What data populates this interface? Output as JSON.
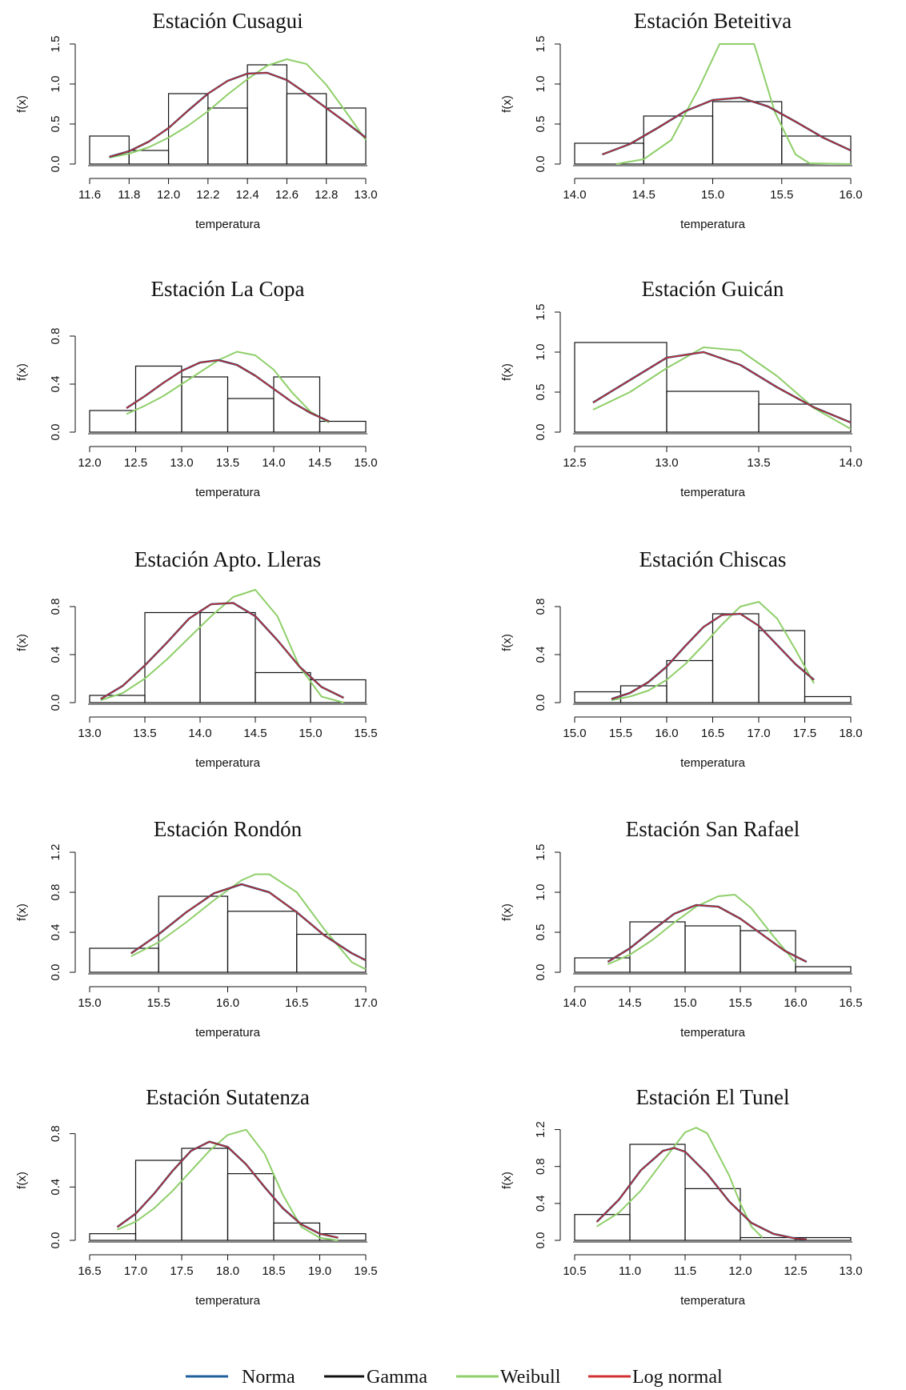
{
  "legend": [
    {
      "name": "Norma",
      "color": "#1f5f9e"
    },
    {
      "name": "Gamma",
      "color": "#111111"
    },
    {
      "name": "Weibull",
      "color": "#8fcf6a"
    },
    {
      "name": "Log normal",
      "color": "#d03030"
    }
  ],
  "chart_data": [
    {
      "type": "histogram",
      "title": "Estación Cusagui",
      "xlabel": "temperatura",
      "ylabel": "f(x)",
      "xlim": [
        11.6,
        13.0
      ],
      "ylim": [
        0,
        1.5
      ],
      "xticks": [
        "11.6",
        "11.8",
        "12.0",
        "12.2",
        "12.4",
        "12.6",
        "12.8",
        "13.0"
      ],
      "yticks": [
        "0.0",
        "0.5",
        "1.0",
        "1.5"
      ],
      "bins": [
        {
          "x0": 11.6,
          "x1": 11.8,
          "y": 0.35
        },
        {
          "x0": 11.8,
          "x1": 12.0,
          "y": 0.17
        },
        {
          "x0": 12.0,
          "x1": 12.2,
          "y": 0.88
        },
        {
          "x0": 12.2,
          "x1": 12.4,
          "y": 0.7
        },
        {
          "x0": 12.4,
          "x1": 12.6,
          "y": 1.24
        },
        {
          "x0": 12.6,
          "x1": 12.8,
          "y": 0.88
        },
        {
          "x0": 12.8,
          "x1": 13.0,
          "y": 0.7
        }
      ],
      "fit": {
        "x": [
          11.7,
          11.8,
          11.9,
          12.0,
          12.1,
          12.2,
          12.3,
          12.4,
          12.5,
          12.6,
          12.7,
          12.8,
          12.9,
          13.0
        ],
        "y": [
          0.09,
          0.16,
          0.28,
          0.45,
          0.67,
          0.88,
          1.04,
          1.13,
          1.14,
          1.05,
          0.88,
          0.7,
          0.52,
          0.33
        ]
      },
      "weibull": {
        "x": [
          11.7,
          11.8,
          11.9,
          12.0,
          12.1,
          12.2,
          12.3,
          12.4,
          12.5,
          12.6,
          12.7,
          12.8,
          12.9,
          13.0
        ],
        "y": [
          0.08,
          0.13,
          0.21,
          0.33,
          0.48,
          0.66,
          0.87,
          1.06,
          1.23,
          1.31,
          1.25,
          0.99,
          0.65,
          0.3
        ]
      }
    },
    {
      "type": "histogram",
      "title": "Estación Beteitiva",
      "xlabel": "temperatura",
      "ylabel": "f(x)",
      "xlim": [
        14.0,
        16.0
      ],
      "ylim": [
        0,
        1.5
      ],
      "xticks": [
        "14.0",
        "14.5",
        "15.0",
        "15.5",
        "16.0"
      ],
      "yticks": [
        "0.0",
        "0.5",
        "1.0",
        "1.5"
      ],
      "bins": [
        {
          "x0": 14.0,
          "x1": 14.5,
          "y": 0.26
        },
        {
          "x0": 14.5,
          "x1": 15.0,
          "y": 0.6
        },
        {
          "x0": 15.0,
          "x1": 15.5,
          "y": 0.78
        },
        {
          "x0": 15.5,
          "x1": 16.0,
          "y": 0.35
        }
      ],
      "fit": {
        "x": [
          14.2,
          14.4,
          14.6,
          14.8,
          15.0,
          15.2,
          15.4,
          15.6,
          15.8,
          16.0
        ],
        "y": [
          0.12,
          0.25,
          0.45,
          0.66,
          0.8,
          0.83,
          0.72,
          0.53,
          0.33,
          0.17
        ]
      },
      "weibull": {
        "x": [
          14.3,
          14.5,
          14.7,
          14.9,
          15.05,
          15.1,
          15.3,
          15.45,
          15.6,
          15.7,
          16.0
        ],
        "y": [
          0.0,
          0.06,
          0.3,
          0.95,
          1.5,
          1.5,
          1.5,
          0.65,
          0.12,
          0.01,
          0.0
        ]
      }
    },
    {
      "type": "histogram",
      "title": "Estación La Copa",
      "xlabel": "temperatura",
      "ylabel": "f(x)",
      "xlim": [
        12.0,
        15.0
      ],
      "ylim": [
        0,
        1.0
      ],
      "xticks": [
        "12.0",
        "12.5",
        "13.0",
        "13.5",
        "14.0",
        "14.5",
        "15.0"
      ],
      "yticks": [
        "0.0",
        "0.4",
        "0.8"
      ],
      "bins": [
        {
          "x0": 12.0,
          "x1": 12.5,
          "y": 0.18
        },
        {
          "x0": 12.5,
          "x1": 13.0,
          "y": 0.55
        },
        {
          "x0": 13.0,
          "x1": 13.5,
          "y": 0.46
        },
        {
          "x0": 13.5,
          "x1": 14.0,
          "y": 0.28
        },
        {
          "x0": 14.0,
          "x1": 14.5,
          "y": 0.46
        },
        {
          "x0": 14.5,
          "x1": 15.0,
          "y": 0.09
        }
      ],
      "fit": {
        "x": [
          12.4,
          12.6,
          12.8,
          13.0,
          13.2,
          13.4,
          13.6,
          13.8,
          14.0,
          14.2,
          14.4,
          14.6
        ],
        "y": [
          0.2,
          0.3,
          0.41,
          0.51,
          0.58,
          0.6,
          0.56,
          0.47,
          0.36,
          0.25,
          0.16,
          0.09
        ]
      },
      "weibull": {
        "x": [
          12.4,
          12.6,
          12.8,
          13.0,
          13.2,
          13.4,
          13.6,
          13.8,
          14.0,
          14.2,
          14.4,
          14.6
        ],
        "y": [
          0.15,
          0.22,
          0.3,
          0.4,
          0.5,
          0.6,
          0.67,
          0.64,
          0.52,
          0.33,
          0.17,
          0.08
        ]
      }
    },
    {
      "type": "histogram",
      "title": "Estación Guicán",
      "xlabel": "temperatura",
      "ylabel": "f(x)",
      "xlim": [
        12.5,
        14.0
      ],
      "ylim": [
        0,
        1.5
      ],
      "xticks": [
        "12.5",
        "13.0",
        "13.5",
        "14.0"
      ],
      "yticks": [
        "0.0",
        "0.5",
        "1.0",
        "1.5"
      ],
      "bins": [
        {
          "x0": 12.5,
          "x1": 13.0,
          "y": 1.12
        },
        {
          "x0": 13.0,
          "x1": 13.5,
          "y": 0.51
        },
        {
          "x0": 13.5,
          "x1": 14.0,
          "y": 0.35
        }
      ],
      "fit": {
        "x": [
          12.6,
          12.8,
          13.0,
          13.2,
          13.4,
          13.6,
          13.8,
          14.0
        ],
        "y": [
          0.37,
          0.65,
          0.93,
          1.0,
          0.84,
          0.56,
          0.31,
          0.12
        ]
      },
      "weibull": {
        "x": [
          12.6,
          12.8,
          13.0,
          13.2,
          13.4,
          13.6,
          13.8,
          14.0
        ],
        "y": [
          0.28,
          0.5,
          0.8,
          1.06,
          1.02,
          0.7,
          0.3,
          0.04
        ]
      }
    },
    {
      "type": "histogram",
      "title": "Estación Apto. Lleras",
      "xlabel": "temperatura",
      "ylabel": "f(x)",
      "xlim": [
        13.0,
        15.5
      ],
      "ylim": [
        0,
        1.0
      ],
      "xticks": [
        "13.0",
        "13.5",
        "14.0",
        "14.5",
        "15.0",
        "15.5"
      ],
      "yticks": [
        "0.0",
        "0.4",
        "0.8"
      ],
      "bins": [
        {
          "x0": 13.0,
          "x1": 13.5,
          "y": 0.06
        },
        {
          "x0": 13.5,
          "x1": 14.0,
          "y": 0.75
        },
        {
          "x0": 14.0,
          "x1": 14.5,
          "y": 0.75
        },
        {
          "x0": 14.5,
          "x1": 15.0,
          "y": 0.25
        },
        {
          "x0": 15.0,
          "x1": 15.5,
          "y": 0.19
        }
      ],
      "fit": {
        "x": [
          13.1,
          13.3,
          13.5,
          13.7,
          13.9,
          14.1,
          14.3,
          14.5,
          14.7,
          14.9,
          15.1,
          15.3
        ],
        "y": [
          0.03,
          0.14,
          0.31,
          0.5,
          0.7,
          0.82,
          0.83,
          0.72,
          0.52,
          0.3,
          0.13,
          0.04
        ]
      },
      "weibull": {
        "x": [
          13.1,
          13.3,
          13.5,
          13.7,
          13.9,
          14.1,
          14.3,
          14.5,
          14.7,
          14.9,
          15.1,
          15.3
        ],
        "y": [
          0.02,
          0.08,
          0.2,
          0.36,
          0.54,
          0.72,
          0.88,
          0.94,
          0.72,
          0.3,
          0.05,
          0.0
        ]
      }
    },
    {
      "type": "histogram",
      "title": "Estación Chiscas",
      "xlabel": "temperatura",
      "ylabel": "f(x)",
      "xlim": [
        15.0,
        18.0
      ],
      "ylim": [
        0,
        1.0
      ],
      "xticks": [
        "15.0",
        "15.5",
        "16.0",
        "16.5",
        "17.0",
        "17.5",
        "18.0"
      ],
      "yticks": [
        "0.0",
        "0.4",
        "0.8"
      ],
      "bins": [
        {
          "x0": 15.0,
          "x1": 15.5,
          "y": 0.09
        },
        {
          "x0": 15.5,
          "x1": 16.0,
          "y": 0.14
        },
        {
          "x0": 16.0,
          "x1": 16.5,
          "y": 0.35
        },
        {
          "x0": 16.5,
          "x1": 17.0,
          "y": 0.74
        },
        {
          "x0": 17.0,
          "x1": 17.5,
          "y": 0.6
        },
        {
          "x0": 17.5,
          "x1": 18.0,
          "y": 0.05
        }
      ],
      "fit": {
        "x": [
          15.4,
          15.6,
          15.8,
          16.0,
          16.2,
          16.4,
          16.6,
          16.8,
          17.0,
          17.2,
          17.4,
          17.6
        ],
        "y": [
          0.03,
          0.08,
          0.17,
          0.3,
          0.47,
          0.63,
          0.73,
          0.74,
          0.64,
          0.48,
          0.32,
          0.19
        ]
      },
      "weibull": {
        "x": [
          15.4,
          15.6,
          15.8,
          16.0,
          16.2,
          16.4,
          16.6,
          16.8,
          17.0,
          17.2,
          17.4,
          17.6
        ],
        "y": [
          0.02,
          0.05,
          0.1,
          0.19,
          0.32,
          0.48,
          0.65,
          0.8,
          0.84,
          0.7,
          0.44,
          0.16
        ]
      }
    },
    {
      "type": "histogram",
      "title": "Estación Rondón",
      "xlabel": "temperatura",
      "ylabel": "f(x)",
      "xlim": [
        15.0,
        17.0
      ],
      "ylim": [
        0,
        1.2
      ],
      "xticks": [
        "15.0",
        "15.5",
        "16.0",
        "16.5",
        "17.0"
      ],
      "yticks": [
        "0.0",
        "0.4",
        "0.8",
        "1.2"
      ],
      "bins": [
        {
          "x0": 15.0,
          "x1": 15.5,
          "y": 0.24
        },
        {
          "x0": 15.5,
          "x1": 16.0,
          "y": 0.76
        },
        {
          "x0": 16.0,
          "x1": 16.5,
          "y": 0.61
        },
        {
          "x0": 16.5,
          "x1": 17.0,
          "y": 0.38
        }
      ],
      "fit": {
        "x": [
          15.3,
          15.5,
          15.7,
          15.9,
          16.1,
          16.3,
          16.5,
          16.7,
          16.9,
          17.0
        ],
        "y": [
          0.19,
          0.38,
          0.6,
          0.79,
          0.88,
          0.8,
          0.6,
          0.37,
          0.19,
          0.12
        ]
      },
      "weibull": {
        "x": [
          15.3,
          15.5,
          15.7,
          15.9,
          16.1,
          16.2,
          16.3,
          16.5,
          16.7,
          16.9,
          17.0
        ],
        "y": [
          0.16,
          0.3,
          0.5,
          0.72,
          0.92,
          0.98,
          0.98,
          0.8,
          0.43,
          0.1,
          0.03
        ]
      }
    },
    {
      "type": "histogram",
      "title": "Estación San Rafael",
      "xlabel": "temperatura",
      "ylabel": "f(x)",
      "xlim": [
        14.0,
        16.5
      ],
      "ylim": [
        0,
        1.5
      ],
      "xticks": [
        "14.0",
        "14.5",
        "15.0",
        "15.5",
        "16.0",
        "16.5"
      ],
      "yticks": [
        "0.0",
        "0.5",
        "1.0",
        "1.5"
      ],
      "bins": [
        {
          "x0": 14.0,
          "x1": 14.5,
          "y": 0.18
        },
        {
          "x0": 14.5,
          "x1": 15.0,
          "y": 0.63
        },
        {
          "x0": 15.0,
          "x1": 15.5,
          "y": 0.58
        },
        {
          "x0": 15.5,
          "x1": 16.0,
          "y": 0.52
        },
        {
          "x0": 16.0,
          "x1": 16.5,
          "y": 0.07
        }
      ],
      "fit": {
        "x": [
          14.3,
          14.5,
          14.7,
          14.9,
          15.1,
          15.3,
          15.5,
          15.7,
          15.9,
          16.1
        ],
        "y": [
          0.13,
          0.3,
          0.52,
          0.73,
          0.84,
          0.82,
          0.67,
          0.47,
          0.27,
          0.13
        ]
      },
      "weibull": {
        "x": [
          14.3,
          14.5,
          14.7,
          14.9,
          15.1,
          15.3,
          15.45,
          15.6,
          15.8,
          16.0
        ],
        "y": [
          0.1,
          0.22,
          0.4,
          0.62,
          0.82,
          0.95,
          0.97,
          0.8,
          0.45,
          0.12
        ]
      }
    },
    {
      "type": "histogram",
      "title": "Estación Sutatenza",
      "xlabel": "temperatura",
      "ylabel": "f(x)",
      "xlim": [
        16.5,
        19.5
      ],
      "ylim": [
        0,
        0.9
      ],
      "xticks": [
        "16.5",
        "17.0",
        "17.5",
        "18.0",
        "18.5",
        "19.0",
        "19.5"
      ],
      "yticks": [
        "0.0",
        "0.4",
        "0.8"
      ],
      "bins": [
        {
          "x0": 16.5,
          "x1": 17.0,
          "y": 0.05
        },
        {
          "x0": 17.0,
          "x1": 17.5,
          "y": 0.6
        },
        {
          "x0": 17.5,
          "x1": 18.0,
          "y": 0.69
        },
        {
          "x0": 18.0,
          "x1": 18.5,
          "y": 0.5
        },
        {
          "x0": 18.5,
          "x1": 19.0,
          "y": 0.13
        },
        {
          "x0": 19.0,
          "x1": 19.5,
          "y": 0.05
        }
      ],
      "fit": {
        "x": [
          16.8,
          17.0,
          17.2,
          17.4,
          17.6,
          17.8,
          18.0,
          18.2,
          18.4,
          18.6,
          18.8,
          19.0,
          19.2
        ],
        "y": [
          0.1,
          0.2,
          0.35,
          0.52,
          0.67,
          0.74,
          0.7,
          0.57,
          0.4,
          0.24,
          0.12,
          0.05,
          0.02
        ]
      },
      "weibull": {
        "x": [
          16.8,
          17.0,
          17.2,
          17.4,
          17.6,
          17.8,
          18.0,
          18.2,
          18.4,
          18.6,
          18.8,
          19.0,
          19.2
        ],
        "y": [
          0.08,
          0.14,
          0.24,
          0.37,
          0.52,
          0.67,
          0.79,
          0.83,
          0.65,
          0.34,
          0.1,
          0.02,
          0.0
        ]
      }
    },
    {
      "type": "histogram",
      "title": "Estación El Tunel",
      "xlabel": "temperatura",
      "ylabel": "f(x)",
      "xlim": [
        10.5,
        13.0
      ],
      "ylim": [
        0,
        1.3
      ],
      "xticks": [
        "10.5",
        "11.0",
        "11.5",
        "12.0",
        "12.5",
        "13.0"
      ],
      "yticks": [
        "0.0",
        "0.4",
        "0.8",
        "1.2"
      ],
      "bins": [
        {
          "x0": 10.5,
          "x1": 11.0,
          "y": 0.28
        },
        {
          "x0": 11.0,
          "x1": 11.5,
          "y": 1.04
        },
        {
          "x0": 11.5,
          "x1": 12.0,
          "y": 0.56
        },
        {
          "x0": 12.0,
          "x1": 12.5,
          "y": 0.03
        },
        {
          "x0": 12.5,
          "x1": 13.0,
          "y": 0.03
        }
      ],
      "fit": {
        "x": [
          10.7,
          10.9,
          11.1,
          11.3,
          11.4,
          11.5,
          11.7,
          11.9,
          12.1,
          12.3,
          12.5,
          12.6
        ],
        "y": [
          0.2,
          0.44,
          0.76,
          0.97,
          1.0,
          0.96,
          0.72,
          0.42,
          0.19,
          0.07,
          0.02,
          0.01
        ]
      },
      "weibull": {
        "x": [
          10.7,
          10.9,
          11.1,
          11.3,
          11.5,
          11.6,
          11.7,
          11.9,
          12.0,
          12.1,
          12.2
        ],
        "y": [
          0.15,
          0.3,
          0.54,
          0.86,
          1.17,
          1.22,
          1.16,
          0.7,
          0.4,
          0.15,
          0.03
        ]
      }
    }
  ]
}
